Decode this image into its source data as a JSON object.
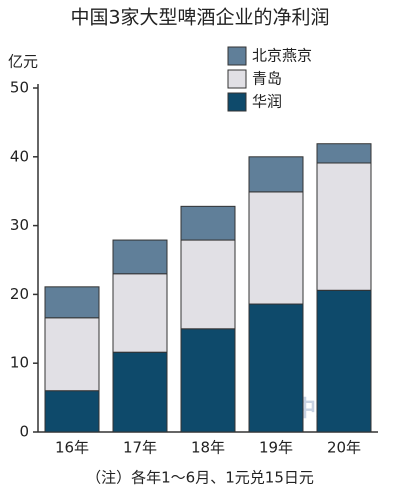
{
  "chart_data": {
    "type": "stacked_bar",
    "title": "中国3家大型啤酒企业的净利润",
    "y_unit": "亿元",
    "note": "（注）各年1～6月、1元兑15日元",
    "watermark": "日经中文网",
    "categories": [
      "16年",
      "17年",
      "18年",
      "19年",
      "20年"
    ],
    "series": [
      {
        "name": "华润",
        "color": "#0e4a6b",
        "values": [
          6.0,
          11.6,
          15.0,
          18.6,
          20.6
        ]
      },
      {
        "name": "青岛",
        "color": "#e1e0e5",
        "values": [
          10.6,
          11.4,
          12.9,
          16.3,
          18.5
        ]
      },
      {
        "name": "北京燕京",
        "color": "#607f99",
        "values": [
          4.5,
          4.9,
          4.9,
          5.1,
          2.8
        ]
      }
    ],
    "ylim": [
      0,
      50
    ],
    "yticks": [
      0,
      10,
      20,
      30,
      40,
      50
    ],
    "grid": false,
    "legend": "top-right"
  }
}
